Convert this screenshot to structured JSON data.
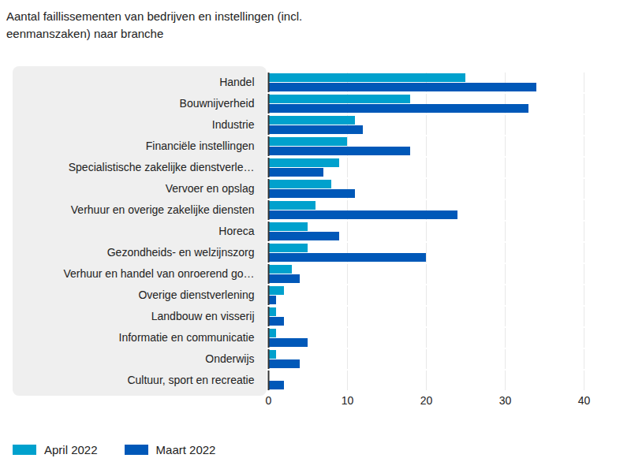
{
  "chart_data": {
    "type": "bar",
    "orientation": "horizontal",
    "title": "Aantal faillissementen van bedrijven en instellingen (incl. eenmanszaken) naar branche",
    "categories": [
      "Handel",
      "Bouwnijverheid",
      "Industrie",
      "Financiële instellingen",
      "Specialistische zakelijke dienstverle…",
      "Vervoer en opslag",
      "Verhuur en overige zakelijke diensten",
      "Horeca",
      "Gezondheids- en welzijnszorg",
      "Verhuur en handel van onroerend go…",
      "Overige dienstverlening",
      "Landbouw en visserij",
      "Informatie en communicatie",
      "Onderwijs",
      "Cultuur, sport en recreatie"
    ],
    "series": [
      {
        "name": "April 2022",
        "color": "#00a1cd",
        "values": [
          25,
          18,
          11,
          10,
          9,
          8,
          6,
          5,
          5,
          3,
          2,
          1,
          1,
          1,
          0
        ]
      },
      {
        "name": "Maart 2022",
        "color": "#0058b8",
        "values": [
          34,
          33,
          12,
          18,
          7,
          11,
          24,
          9,
          20,
          4,
          1,
          2,
          5,
          4,
          2
        ]
      }
    ],
    "xlim": [
      0,
      40
    ],
    "xticks": [
      0,
      10,
      20,
      30,
      40
    ],
    "grid": true,
    "legend": "bottom"
  }
}
